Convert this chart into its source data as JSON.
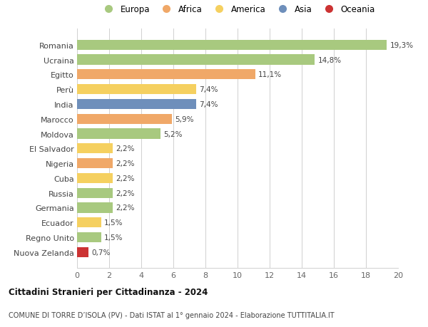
{
  "countries": [
    "Romania",
    "Ucraina",
    "Egitto",
    "Perù",
    "India",
    "Marocco",
    "Moldova",
    "El Salvador",
    "Nigeria",
    "Cuba",
    "Russia",
    "Germania",
    "Ecuador",
    "Regno Unito",
    "Nuova Zelanda"
  ],
  "values": [
    19.3,
    14.8,
    11.1,
    7.4,
    7.4,
    5.9,
    5.2,
    2.2,
    2.2,
    2.2,
    2.2,
    2.2,
    1.5,
    1.5,
    0.7
  ],
  "labels": [
    "19,3%",
    "14,8%",
    "11,1%",
    "7,4%",
    "7,4%",
    "5,9%",
    "5,2%",
    "2,2%",
    "2,2%",
    "2,2%",
    "2,2%",
    "2,2%",
    "1,5%",
    "1,5%",
    "0,7%"
  ],
  "continents": [
    "Europa",
    "Europa",
    "Africa",
    "America",
    "Asia",
    "Africa",
    "Europa",
    "America",
    "Africa",
    "America",
    "Europa",
    "Europa",
    "America",
    "Europa",
    "Oceania"
  ],
  "colors": {
    "Europa": "#a8c97f",
    "Africa": "#f0a868",
    "America": "#f5d060",
    "Asia": "#6e8fbb",
    "Oceania": "#cc3333"
  },
  "legend_order": [
    "Europa",
    "Africa",
    "America",
    "Asia",
    "Oceania"
  ],
  "title_bold": "Cittadini Stranieri per Cittadinanza - 2024",
  "subtitle": "COMUNE DI TORRE D’ISOLA (PV) - Dati ISTAT al 1° gennaio 2024 - Elaborazione TUTTITALIA.IT",
  "xlim": [
    0,
    20
  ],
  "xticks": [
    0,
    2,
    4,
    6,
    8,
    10,
    12,
    14,
    16,
    18,
    20
  ],
  "background_color": "#ffffff",
  "grid_color": "#d0d0d0",
  "bar_height": 0.68
}
